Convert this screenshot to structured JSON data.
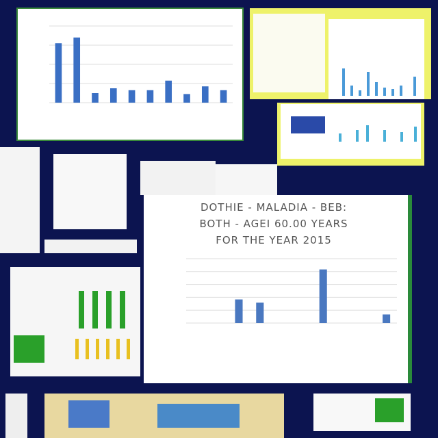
{
  "chart_data": [
    {
      "type": "bar",
      "color": "#3a6fc4",
      "values": [
        62,
        68,
        10,
        15,
        13,
        13,
        23,
        9,
        17,
        13
      ],
      "ylim": [
        0,
        80
      ],
      "yticks": [
        0,
        20,
        40,
        60,
        80
      ],
      "grid": true
    },
    {
      "type": "bar",
      "title": "DOTHIE - MALADIA - BEB: BOTH - AGEI 60.00 YEARS FOR THE YEAR 2015",
      "color": "#4a78c0",
      "values": [
        0,
        0,
        22,
        19,
        0,
        0,
        50,
        0,
        0,
        8
      ],
      "ylim": [
        0,
        60
      ],
      "yticks": [
        0,
        12,
        24,
        36,
        48,
        60
      ],
      "grid": true
    }
  ]
}
